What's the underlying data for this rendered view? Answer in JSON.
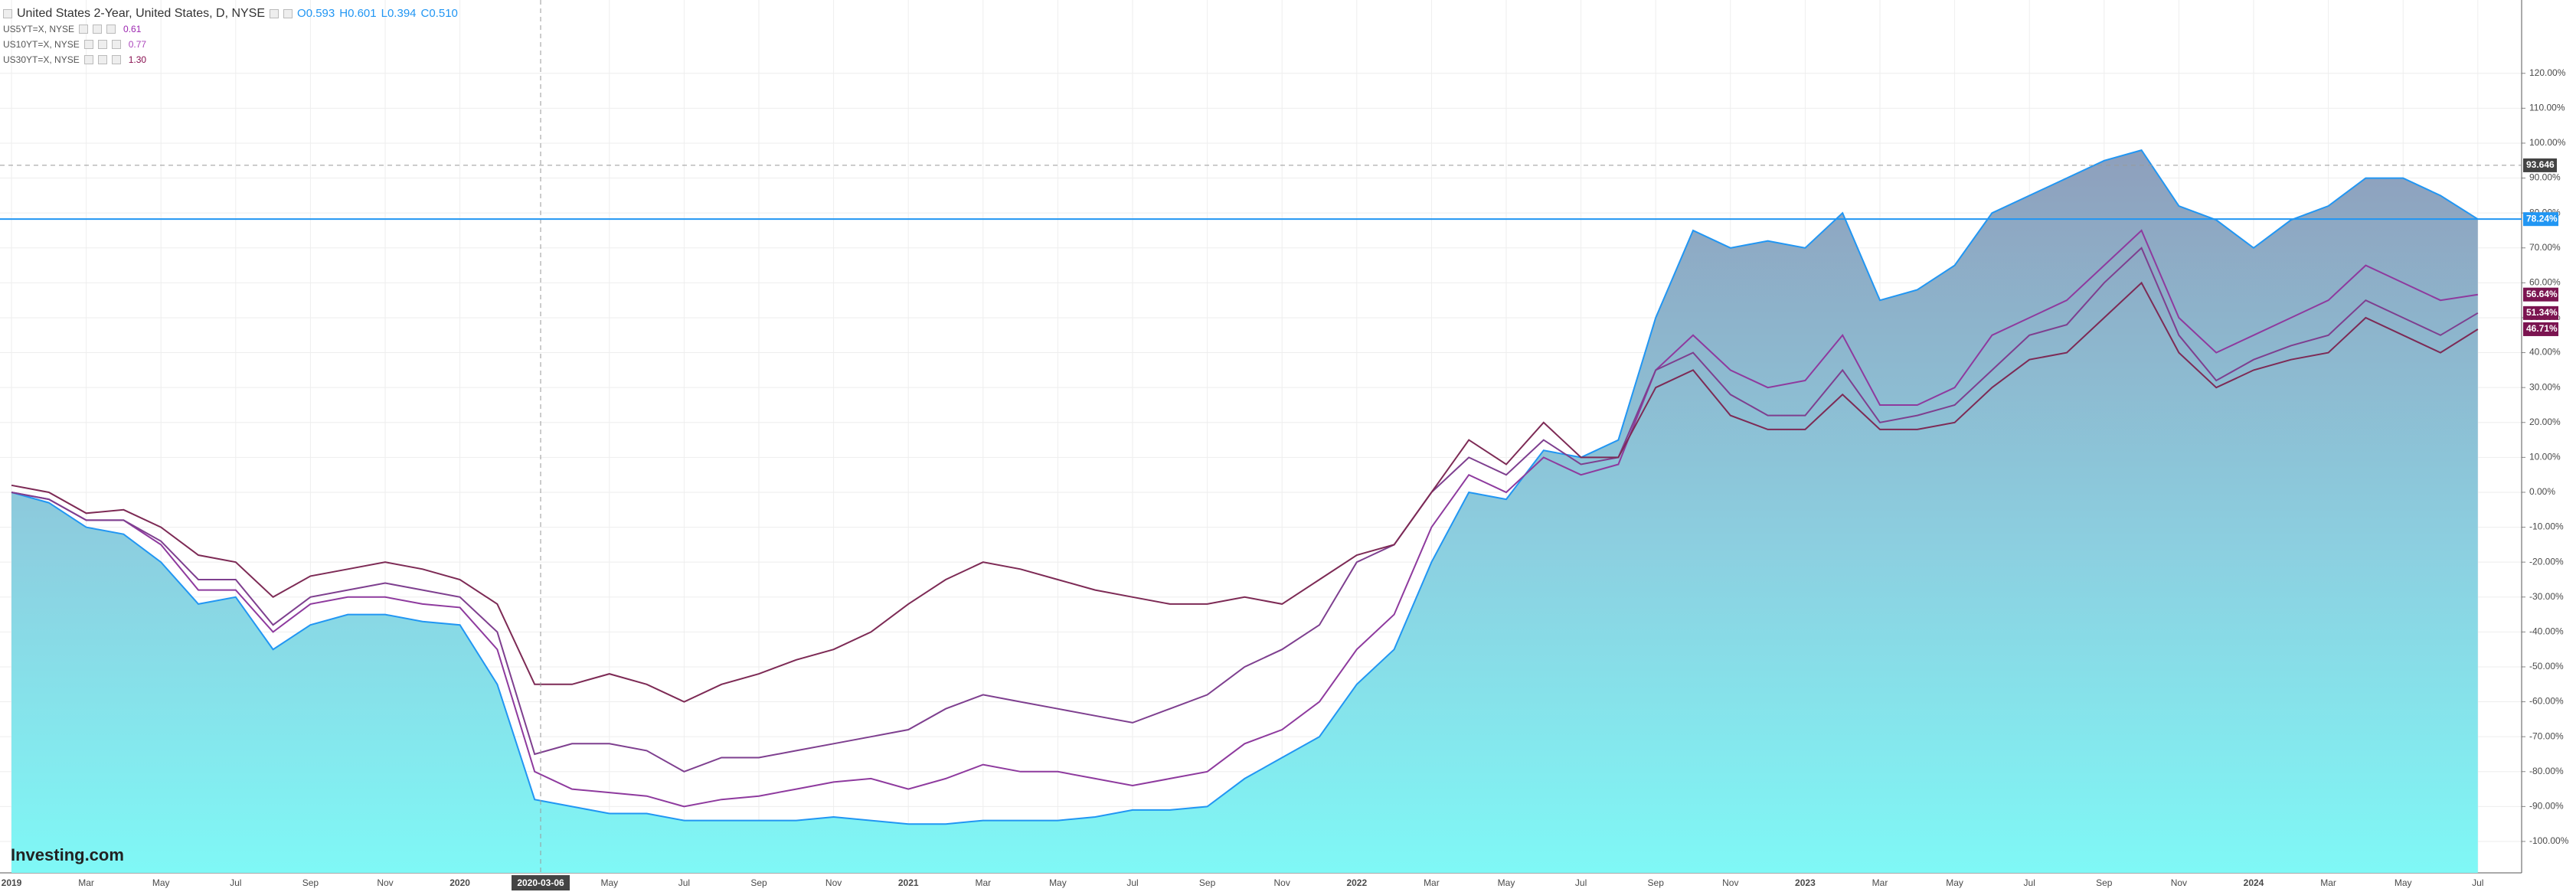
{
  "chart_data": {
    "type": "line",
    "legend": {
      "title": "United States 2-Year, United States, D, NYSE",
      "ohlc": [
        "O0.593",
        "H0.601",
        "L0.394",
        "C0.510"
      ],
      "rows": [
        {
          "name": "US5YT=X, NYSE",
          "quote": "0.61",
          "color": "#9c27b0"
        },
        {
          "name": "US10YT=X, NYSE",
          "quote": "0.77",
          "color": "#ab47bc"
        },
        {
          "name": "US30YT=X, NYSE",
          "quote": "1.30",
          "color": "#880e4f"
        }
      ]
    },
    "logo": "Investing.com",
    "categories": [
      "2019",
      null,
      "Mar",
      null,
      "May",
      null,
      "Jul",
      null,
      "Sep",
      null,
      "Nov",
      null,
      "2020",
      null,
      null,
      null,
      "May",
      null,
      "Jul",
      null,
      "Sep",
      null,
      "Nov",
      null,
      "2021",
      null,
      "Mar",
      null,
      "May",
      null,
      "Jul",
      null,
      "Sep",
      null,
      "Nov",
      null,
      "2022",
      null,
      "Mar",
      null,
      "May",
      null,
      "Jul",
      null,
      "Sep",
      null,
      "Nov",
      null,
      "2023",
      null,
      "Mar",
      null,
      "May",
      null,
      "Jul",
      null,
      "Sep",
      null,
      "Nov",
      null,
      "2024",
      null,
      "Mar",
      null,
      "May",
      null,
      "Jul"
    ],
    "series": [
      {
        "name": "United States 2-Year",
        "color": "#2196f3",
        "area": true,
        "last_value_label": "78.24%",
        "values": [
          0,
          -3,
          -10,
          -12,
          -20,
          -32,
          -30,
          -45,
          -38,
          -35,
          -35,
          -37,
          -38,
          -55,
          -88,
          -90,
          -92,
          -92,
          -94,
          -94,
          -94,
          -94,
          -93,
          -94,
          -95,
          -95,
          -94,
          -94,
          -94,
          -93,
          -91,
          -91,
          -90,
          -82,
          -76,
          -70,
          -55,
          -45,
          -20,
          0,
          -2,
          12,
          10,
          15,
          50,
          75,
          70,
          72,
          70,
          80,
          55,
          58,
          65,
          80,
          85,
          90,
          95,
          98,
          82,
          78,
          70,
          78,
          82,
          90,
          90,
          85,
          78.24
        ]
      },
      {
        "name": "US5YT=X",
        "color": "#8e3a9e",
        "label_color": "#7b1450",
        "last_value_label": "56.64%",
        "values": [
          0,
          -2,
          -8,
          -8,
          -15,
          -28,
          -28,
          -40,
          -32,
          -30,
          -30,
          -32,
          -33,
          -45,
          -80,
          -85,
          -86,
          -87,
          -90,
          -88,
          -87,
          -85,
          -83,
          -82,
          -85,
          -82,
          -78,
          -80,
          -80,
          -82,
          -84,
          -82,
          -80,
          -72,
          -68,
          -60,
          -45,
          -35,
          -10,
          5,
          0,
          10,
          5,
          8,
          35,
          45,
          35,
          30,
          32,
          45,
          25,
          25,
          30,
          45,
          50,
          55,
          65,
          75,
          50,
          40,
          45,
          50,
          55,
          65,
          60,
          55,
          56.64
        ]
      },
      {
        "name": "US10YT=X",
        "color": "#7e3f8f",
        "label_color": "#7b1450",
        "last_value_label": "51.34%",
        "values": [
          0,
          -2,
          -8,
          -8,
          -14,
          -25,
          -25,
          -38,
          -30,
          -28,
          -26,
          -28,
          -30,
          -40,
          -75,
          -72,
          -72,
          -74,
          -80,
          -76,
          -76,
          -74,
          -72,
          -70,
          -68,
          -62,
          -58,
          -60,
          -62,
          -64,
          -66,
          -62,
          -58,
          -50,
          -45,
          -38,
          -20,
          -15,
          0,
          10,
          5,
          15,
          8,
          10,
          35,
          40,
          28,
          22,
          22,
          35,
          20,
          22,
          25,
          35,
          45,
          48,
          60,
          70,
          45,
          32,
          38,
          42,
          45,
          55,
          50,
          45,
          51.34
        ]
      },
      {
        "name": "US30YT=X",
        "color": "#7d2a55",
        "label_color": "#7b1450",
        "last_value_label": "46.71%",
        "values": [
          2,
          0,
          -6,
          -5,
          -10,
          -18,
          -20,
          -30,
          -24,
          -22,
          -20,
          -22,
          -25,
          -32,
          -55,
          -55,
          -52,
          -55,
          -60,
          -55,
          -52,
          -48,
          -45,
          -40,
          -32,
          -25,
          -20,
          -22,
          -25,
          -28,
          -30,
          -32,
          -32,
          -30,
          -32,
          -25,
          -18,
          -15,
          0,
          15,
          8,
          20,
          10,
          10,
          30,
          35,
          22,
          18,
          18,
          28,
          18,
          18,
          20,
          30,
          38,
          40,
          50,
          60,
          40,
          30,
          35,
          38,
          40,
          50,
          45,
          40,
          46.71
        ]
      }
    ],
    "crosshair": {
      "x_label": "2020-03-06",
      "y_value": 93.646
    },
    "ylim": [
      -109,
      141
    ],
    "yticks": [
      {
        "value": 120,
        "label": "120.00%"
      },
      {
        "value": 110,
        "label": "110.00%"
      },
      {
        "value": 100,
        "label": "100.00%"
      },
      {
        "value": 90,
        "label": "90.00%"
      },
      {
        "value": 80,
        "label": "80.00%"
      },
      {
        "value": 70,
        "label": "70.00%"
      },
      {
        "value": 60,
        "label": "60.00%"
      },
      {
        "value": 50,
        "label": "50.00%"
      },
      {
        "value": 40,
        "label": "40.00%"
      },
      {
        "value": 30,
        "label": "30.00%"
      },
      {
        "value": 20,
        "label": "20.00%"
      },
      {
        "value": 10,
        "label": "10.00%"
      },
      {
        "value": 0,
        "label": "0.00%"
      },
      {
        "value": -10,
        "label": "-10.00%"
      },
      {
        "value": -20,
        "label": "-20.00%"
      },
      {
        "value": -30,
        "label": "-30.00%"
      },
      {
        "value": -40,
        "label": "-40.00%"
      },
      {
        "value": -50,
        "label": "-50.00%"
      },
      {
        "value": -60,
        "label": "-60.00%"
      },
      {
        "value": -70,
        "label": "-70.00%"
      },
      {
        "value": -80,
        "label": "-80.00%"
      },
      {
        "value": -90,
        "label": "-90.00%"
      },
      {
        "value": -100,
        "label": "-100.00%"
      }
    ],
    "grid": true
  }
}
